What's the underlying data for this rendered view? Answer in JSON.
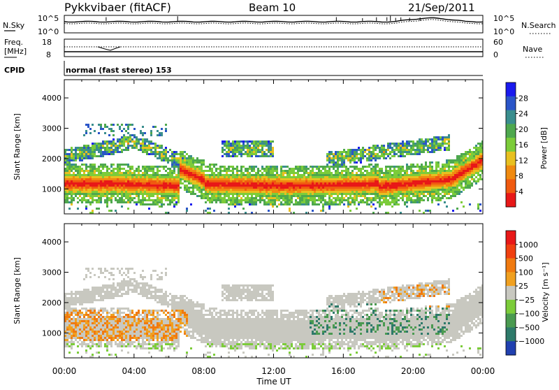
{
  "header": {
    "station": "Pykkvibaer (fitACF)",
    "beam": "Beam 10",
    "date": "21/Sep/2011"
  },
  "top_panels": {
    "nsky_label": "N.Sky",
    "nsky_ticks": [
      "10^5",
      "10^0"
    ],
    "nsearch_label": "N.Search",
    "nsearch_ticks": [
      "10^5",
      "10^0"
    ],
    "freq_label_line1": "Freq.",
    "freq_label_line2": "[MHz]",
    "freq_ticks": [
      "18",
      "8"
    ],
    "nave_label": "Nave",
    "nave_ticks": [
      "60",
      "0"
    ],
    "cpid_label": "CPID",
    "cpid_text": "normal (fast stereo) 153"
  },
  "colors": {
    "power_scale": [
      "#1a1aee",
      "#2a55c8",
      "#3a8e8e",
      "#4ea84e",
      "#7ccc3a",
      "#e8c020",
      "#f08a10",
      "#f05a10",
      "#e81818"
    ],
    "velocity_scale": [
      "#2040b0",
      "#2e7a6a",
      "#4a9a50",
      "#7ccc3a",
      "#c8c8c0",
      "#f0a020",
      "#f07a10",
      "#f04010",
      "#e81818"
    ]
  },
  "chart_data": [
    {
      "type": "heatmap",
      "panel": "power",
      "ylabel": "Slant Range [km]",
      "ylim": [
        180,
        4600
      ],
      "yticks": [
        "1000",
        "2000",
        "3000",
        "4000"
      ],
      "xlim": [
        0,
        24
      ],
      "colorbar_label": "Power [dB]",
      "colorbar_ticks": [
        "28",
        "24",
        "20",
        "16",
        "12",
        "8",
        "4"
      ],
      "crange": [
        0,
        32
      ]
    },
    {
      "type": "heatmap",
      "panel": "velocity",
      "ylabel": "Slant Range [km]",
      "ylim": [
        180,
        4600
      ],
      "yticks": [
        "1000",
        "2000",
        "3000",
        "4000"
      ],
      "xlim": [
        0,
        24
      ],
      "colorbar_label": "Velocity [m s⁻¹]",
      "colorbar_ticks": [
        "1000",
        "500",
        "100",
        "25",
        "−25",
        "−100",
        "−500",
        "−1000"
      ]
    }
  ],
  "x_axis": {
    "ticks": [
      "00:00",
      "04:00",
      "08:00",
      "12:00",
      "16:00",
      "20:00",
      "00:00"
    ],
    "label": "Time UT"
  }
}
